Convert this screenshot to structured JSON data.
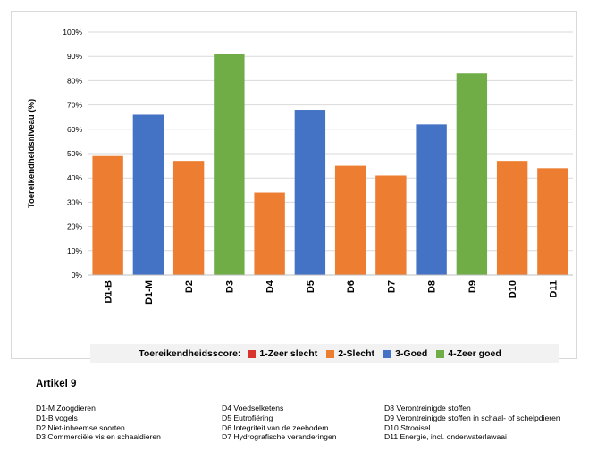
{
  "chart_data": {
    "type": "bar",
    "ylabel": "Toereikendheidsniveau (%)",
    "xlabel": "",
    "ylim": [
      0,
      100
    ],
    "yticks": [
      "0%",
      "10%",
      "20%",
      "30%",
      "40%",
      "50%",
      "60%",
      "70%",
      "80%",
      "90%",
      "100%"
    ],
    "categories": [
      "D1-B",
      "D1-M",
      "D2",
      "D3",
      "D4",
      "D5",
      "D6",
      "D7",
      "D8",
      "D9",
      "D10",
      "D11"
    ],
    "values": [
      49,
      66,
      47,
      91,
      34,
      68,
      45,
      41,
      62,
      83,
      47,
      44
    ],
    "scores": [
      "2-Slecht",
      "3-Goed",
      "2-Slecht",
      "4-Zeer goed",
      "2-Slecht",
      "3-Goed",
      "2-Slecht",
      "2-Slecht",
      "3-Goed",
      "4-Zeer goed",
      "2-Slecht",
      "2-Slecht"
    ],
    "grid": true,
    "legend_position": "bottom",
    "legend": {
      "title": "Toereikendheidsscore:",
      "items": [
        {
          "label": "1-Zeer slecht",
          "color": "#d9342b"
        },
        {
          "label": "2-Slecht",
          "color": "#ed7d31"
        },
        {
          "label": "3-Goed",
          "color": "#4472c4"
        },
        {
          "label": "4-Zeer goed",
          "color": "#70ad47"
        }
      ]
    }
  },
  "notes": {
    "title": "Artikel 9",
    "columns": [
      [
        "D1-M Zoogdieren",
        "D1-B vogels",
        "D2 Niet-inheemse soorten",
        "D3 Commerciële vis en schaaldieren"
      ],
      [
        "D4 Voedselketens",
        "D5 Eutrofiëring",
        "D6 Integriteit van de zeebodem",
        "D7 Hydrografische veranderingen"
      ],
      [
        "D8 Verontreinigde stoffen",
        "D9 Verontreinigde stoffen in schaal- of schelpdieren",
        "D10 Strooisel",
        "D11 Energie, incl. onderwaterlawaai"
      ]
    ]
  }
}
